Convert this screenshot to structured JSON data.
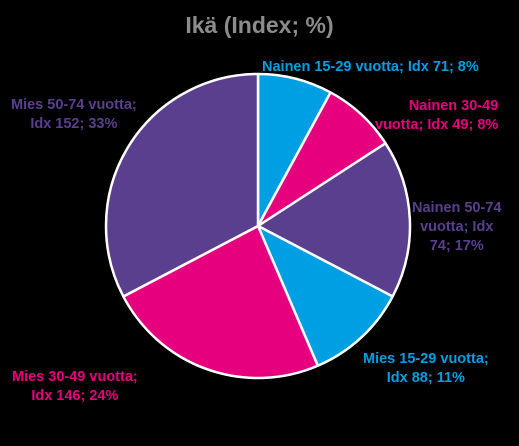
{
  "chart_data": {
    "type": "pie",
    "title": "Ikä (Index; %)",
    "slices": [
      {
        "label_lines": [
          "Nainen 15-29 vuotta; Idx 71; 8%"
        ],
        "index": 71,
        "value": 8,
        "color": "#009fe3"
      },
      {
        "label_lines": [
          "Nainen 30-49",
          "vuotta; Idx 49; 8%"
        ],
        "index": 49,
        "value": 8,
        "color": "#e6007e"
      },
      {
        "label_lines": [
          "Nainen 50-74",
          "vuotta; Idx",
          "74; 17%"
        ],
        "index": 74,
        "value": 17,
        "color": "#5b3f8f"
      },
      {
        "label_lines": [
          "Mies 15-29 vuotta;",
          "Idx 88; 11%"
        ],
        "index": 88,
        "value": 11,
        "color": "#009fe3"
      },
      {
        "label_lines": [
          "Mies 30-49 vuotta;",
          "Idx 146; 24%"
        ],
        "index": 146,
        "value": 24,
        "color": "#e6007e"
      },
      {
        "label_lines": [
          "Mies 50-74 vuotta;",
          "Idx 152; 33%"
        ],
        "index": 152,
        "value": 33,
        "color": "#5b3f8f"
      }
    ],
    "start_angle_deg": 0,
    "direction": "clockwise",
    "slice_border_color": "#ffffff",
    "legend": "none"
  }
}
